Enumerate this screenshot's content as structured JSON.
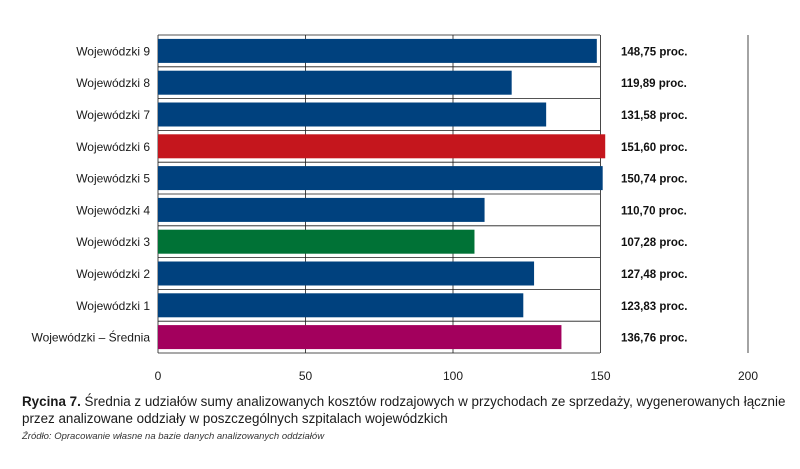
{
  "chart_data": {
    "type": "bar",
    "orientation": "horizontal",
    "categories": [
      "Wojewódzki 9",
      "Wojewódzki 8",
      "Wojewódzki 7",
      "Wojewódzki 6",
      "Wojewódzki 5",
      "Wojewódzki 4",
      "Wojewódzki 3",
      "Wojewódzki 2",
      "Wojewódzki 1",
      "Wojewódzki – Średnia"
    ],
    "values": [
      148.75,
      119.89,
      131.58,
      151.6,
      150.74,
      110.7,
      107.28,
      127.48,
      123.83,
      136.76
    ],
    "value_labels": [
      "148,75 proc.",
      "119,89 proc.",
      "131,58 proc.",
      "151,60 proc.",
      "150,74 proc.",
      "110,70 proc.",
      "107,28 proc.",
      "127,48 proc.",
      "123,83 proc.",
      "136,76 proc."
    ],
    "colors": [
      "#00417e",
      "#00417e",
      "#00417e",
      "#c5161d",
      "#00417e",
      "#00417e",
      "#007236",
      "#00417e",
      "#00417e",
      "#a3005d"
    ],
    "xlim": [
      0,
      200
    ],
    "xticks": [
      0,
      50,
      100,
      150,
      200
    ],
    "xtick_labels": [
      "0",
      "50",
      "100",
      "150",
      "200"
    ],
    "grid": true,
    "gridline_color": "#1a1a1a"
  },
  "caption": {
    "label": "Rycina 7.",
    "text": " Średnia z udziałów sumy analizowanych kosztów rodzajowych w przychodach ze sprzedaży, wygenerowanych łącznie przez analizowane oddziały w poszczególnych szpitalach wojewódzkich"
  },
  "source": "Źródło: Opracowanie własne na bazie danych analizowanych oddziałów"
}
